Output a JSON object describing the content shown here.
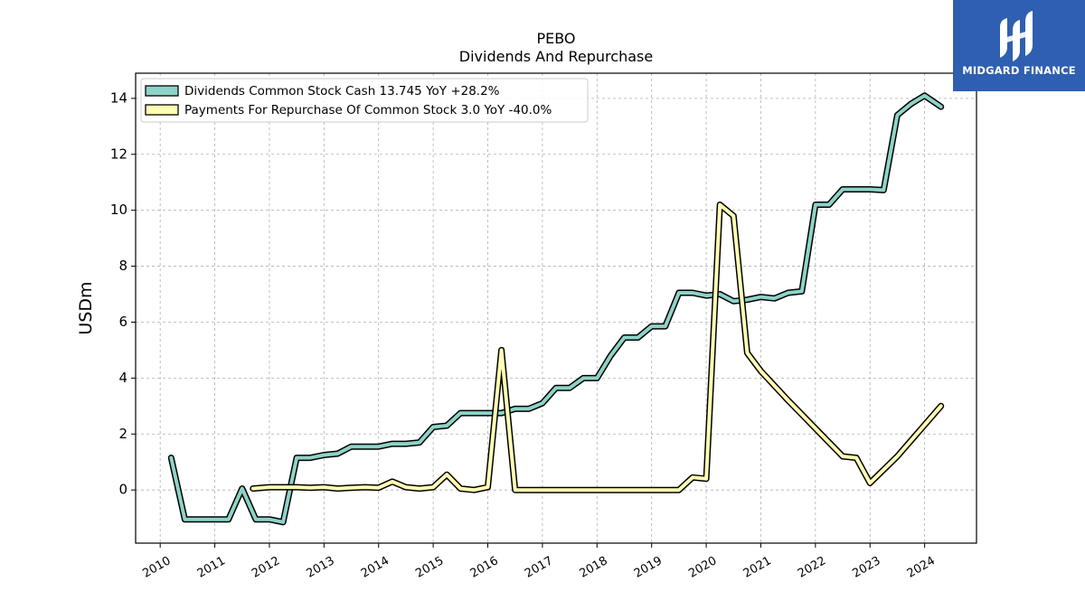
{
  "chart_data": {
    "type": "line",
    "title": "PEBO",
    "subtitle": "Dividends And Repurchase",
    "xlabel": "",
    "ylabel": "USDm",
    "xlim": [
      2009.55,
      2024.95
    ],
    "ylim": [
      -1.9,
      14.9
    ],
    "yticks": [
      0,
      2,
      4,
      6,
      8,
      10,
      12,
      14
    ],
    "xticks": [
      2010,
      2011,
      2012,
      2013,
      2014,
      2015,
      2016,
      2017,
      2018,
      2019,
      2020,
      2021,
      2022,
      2023,
      2024
    ],
    "grid": true,
    "legend_position": "top-left",
    "series": [
      {
        "name": "Dividends Common Stock Cash  13.745 YoY +28.2%",
        "color": "#8dd3c7",
        "x": [
          2010.2,
          2010.45,
          2010.7,
          2011.0,
          2011.25,
          2011.5,
          2011.75,
          2012.0,
          2012.25,
          2012.5,
          2012.75,
          2013.0,
          2013.25,
          2013.5,
          2013.75,
          2014.0,
          2014.25,
          2014.5,
          2014.75,
          2015.0,
          2015.25,
          2015.5,
          2015.75,
          2016.0,
          2016.25,
          2016.5,
          2016.75,
          2017.0,
          2017.25,
          2017.5,
          2017.75,
          2018.0,
          2018.25,
          2018.5,
          2018.75,
          2019.0,
          2019.25,
          2019.5,
          2019.75,
          2020.0,
          2020.25,
          2020.5,
          2020.75,
          2021.0,
          2021.25,
          2021.5,
          2021.75,
          2022.0,
          2022.25,
          2022.5,
          2022.75,
          2023.0,
          2023.25,
          2023.5,
          2023.75,
          2024.0,
          2024.3
        ],
        "values": [
          1.15,
          -1.05,
          -1.05,
          -1.05,
          -1.05,
          0.05,
          -1.05,
          -1.05,
          -1.15,
          1.15,
          1.15,
          1.25,
          1.3,
          1.55,
          1.55,
          1.55,
          1.65,
          1.65,
          1.7,
          2.25,
          2.3,
          2.75,
          2.75,
          2.75,
          2.75,
          2.9,
          2.9,
          3.1,
          3.65,
          3.65,
          4.0,
          4.0,
          4.8,
          5.45,
          5.45,
          5.85,
          5.85,
          7.05,
          7.05,
          6.95,
          7.0,
          6.75,
          6.8,
          6.9,
          6.85,
          7.05,
          7.1,
          10.2,
          10.2,
          10.75,
          10.75,
          10.75,
          10.72,
          13.4,
          13.8,
          14.1,
          13.7
        ]
      },
      {
        "name": "Payments For Repurchase Of Common Stock  3.0 YoY -40.0%",
        "color": "#ffffb3",
        "x": [
          2011.7,
          2012.0,
          2012.25,
          2012.5,
          2012.75,
          2013.0,
          2013.25,
          2013.5,
          2013.75,
          2014.0,
          2014.25,
          2014.5,
          2014.75,
          2015.0,
          2015.25,
          2015.5,
          2015.75,
          2016.0,
          2016.25,
          2016.5,
          2016.75,
          2017.0,
          2017.5,
          2018.0,
          2018.5,
          2019.0,
          2019.5,
          2019.75,
          2020.0,
          2020.25,
          2020.5,
          2020.75,
          2021.0,
          2021.5,
          2022.0,
          2022.5,
          2022.75,
          2023.0,
          2023.5,
          2024.3
        ],
        "values": [
          0.05,
          0.1,
          0.1,
          0.1,
          0.08,
          0.1,
          0.05,
          0.08,
          0.1,
          0.08,
          0.3,
          0.1,
          0.05,
          0.1,
          0.55,
          0.05,
          0.0,
          0.1,
          5.0,
          0.0,
          0.0,
          0.0,
          0.0,
          0.0,
          0.0,
          0.0,
          0.0,
          0.45,
          0.4,
          10.2,
          9.8,
          4.9,
          4.25,
          3.2,
          2.2,
          1.2,
          1.15,
          0.25,
          1.2,
          3.0
        ]
      }
    ]
  },
  "brand": {
    "name": "MIDGARD FINANCE",
    "color": "#2f5fb0",
    "icon": "midgard-logo-icon"
  }
}
